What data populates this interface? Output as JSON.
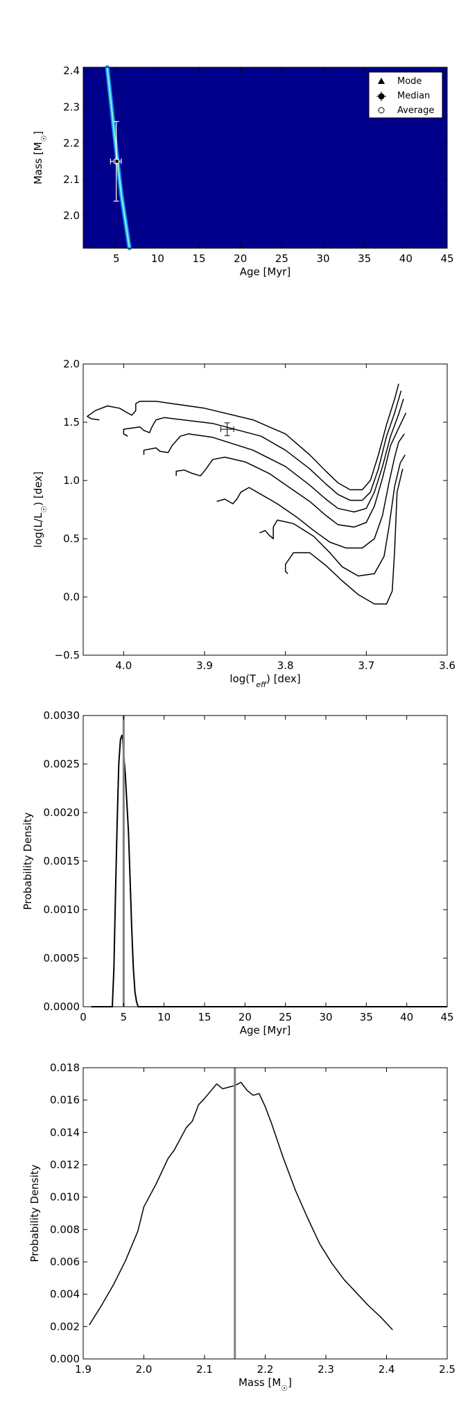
{
  "chart_data": [
    {
      "type": "heatmap",
      "xlabel": "Age [Myr]",
      "ylabel": "Mass [M☉]",
      "xlim": [
        1,
        45
      ],
      "ylim": [
        1.91,
        2.41
      ],
      "xticks": [
        5,
        10,
        15,
        20,
        25,
        30,
        35,
        40,
        45
      ],
      "xtick_labels": [
        "5",
        "10",
        "15",
        "20",
        "25",
        "30",
        "35",
        "40",
        "45"
      ],
      "yticks": [
        2.0,
        2.1,
        2.2,
        2.3,
        2.4
      ],
      "ytick_labels": [
        "2.0",
        "2.1",
        "2.2",
        "2.3",
        "2.4"
      ],
      "background_color": "#00008b",
      "ridge_color": "#7fffd4",
      "ridge": [
        [
          3.9,
          2.41
        ],
        [
          4.9,
          2.2
        ],
        [
          5.6,
          2.06
        ],
        [
          6.6,
          1.91
        ]
      ],
      "legend": {
        "position": "top-right",
        "entries": [
          {
            "label": "Mode",
            "marker": "triangle"
          },
          {
            "label": "Median",
            "marker": "circle-errorbar"
          },
          {
            "label": "Average",
            "marker": "open-circle"
          }
        ]
      },
      "median": {
        "age": 5.0,
        "mass": 2.15,
        "age_err": [
          4.3,
          5.6
        ],
        "mass_err": [
          2.04,
          2.26
        ]
      },
      "grid": false
    },
    {
      "type": "line",
      "xlabel": "log(T_eff) [dex]",
      "ylabel": "log(L/L☉) [dex]",
      "xlim": [
        4.05,
        3.6
      ],
      "ylim": [
        -0.5,
        2.0
      ],
      "xticks": [
        4.0,
        3.9,
        3.8,
        3.7,
        3.6
      ],
      "xtick_labels": [
        "4.0",
        "3.9",
        "3.8",
        "3.7",
        "3.6"
      ],
      "yticks": [
        -0.5,
        0.0,
        0.5,
        1.0,
        1.5,
        2.0
      ],
      "ytick_labels": [
        "−0.5",
        "0.0",
        "0.5",
        "1.0",
        "1.5",
        "2.0"
      ],
      "isochrones": [
        [
          [
            4.03,
            1.52
          ],
          [
            4.04,
            1.53
          ],
          [
            4.045,
            1.55
          ],
          [
            4.035,
            1.6
          ],
          [
            4.02,
            1.64
          ],
          [
            4.005,
            1.62
          ],
          [
            3.995,
            1.58
          ],
          [
            3.99,
            1.56
          ],
          [
            3.985,
            1.6
          ],
          [
            3.985,
            1.66
          ],
          [
            3.98,
            1.68
          ],
          [
            3.96,
            1.68
          ],
          [
            3.9,
            1.62
          ],
          [
            3.84,
            1.52
          ],
          [
            3.8,
            1.4
          ],
          [
            3.77,
            1.22
          ],
          [
            3.75,
            1.08
          ],
          [
            3.735,
            0.98
          ],
          [
            3.72,
            0.92
          ],
          [
            3.705,
            0.92
          ],
          [
            3.695,
            1.0
          ],
          [
            3.685,
            1.22
          ],
          [
            3.675,
            1.48
          ],
          [
            3.665,
            1.7
          ],
          [
            3.66,
            1.83
          ]
        ],
        [
          [
            3.995,
            1.38
          ],
          [
            4.0,
            1.4
          ],
          [
            4.0,
            1.44
          ],
          [
            3.98,
            1.46
          ],
          [
            3.975,
            1.43
          ],
          [
            3.968,
            1.41
          ],
          [
            3.965,
            1.46
          ],
          [
            3.96,
            1.52
          ],
          [
            3.95,
            1.54
          ],
          [
            3.89,
            1.49
          ],
          [
            3.83,
            1.38
          ],
          [
            3.8,
            1.26
          ],
          [
            3.77,
            1.1
          ],
          [
            3.75,
            0.97
          ],
          [
            3.735,
            0.88
          ],
          [
            3.72,
            0.83
          ],
          [
            3.705,
            0.83
          ],
          [
            3.695,
            0.9
          ],
          [
            3.685,
            1.1
          ],
          [
            3.675,
            1.38
          ],
          [
            3.665,
            1.58
          ],
          [
            3.657,
            1.77
          ]
        ],
        [
          [
            3.975,
            1.22
          ],
          [
            3.975,
            1.26
          ],
          [
            3.96,
            1.28
          ],
          [
            3.955,
            1.25
          ],
          [
            3.945,
            1.24
          ],
          [
            3.94,
            1.3
          ],
          [
            3.93,
            1.38
          ],
          [
            3.92,
            1.4
          ],
          [
            3.89,
            1.37
          ],
          [
            3.84,
            1.26
          ],
          [
            3.8,
            1.12
          ],
          [
            3.77,
            0.96
          ],
          [
            3.75,
            0.84
          ],
          [
            3.735,
            0.76
          ],
          [
            3.715,
            0.73
          ],
          [
            3.7,
            0.76
          ],
          [
            3.69,
            0.9
          ],
          [
            3.68,
            1.12
          ],
          [
            3.67,
            1.38
          ],
          [
            3.66,
            1.57
          ],
          [
            3.654,
            1.7
          ]
        ],
        [
          [
            3.935,
            1.04
          ],
          [
            3.935,
            1.08
          ],
          [
            3.925,
            1.09
          ],
          [
            3.915,
            1.06
          ],
          [
            3.905,
            1.04
          ],
          [
            3.898,
            1.1
          ],
          [
            3.89,
            1.18
          ],
          [
            3.875,
            1.2
          ],
          [
            3.85,
            1.16
          ],
          [
            3.82,
            1.06
          ],
          [
            3.795,
            0.94
          ],
          [
            3.77,
            0.82
          ],
          [
            3.75,
            0.7
          ],
          [
            3.735,
            0.62
          ],
          [
            3.715,
            0.6
          ],
          [
            3.7,
            0.64
          ],
          [
            3.69,
            0.78
          ],
          [
            3.68,
            1.02
          ],
          [
            3.67,
            1.3
          ],
          [
            3.66,
            1.45
          ],
          [
            3.651,
            1.58
          ]
        ],
        [
          [
            3.885,
            0.82
          ],
          [
            3.875,
            0.84
          ],
          [
            3.865,
            0.8
          ],
          [
            3.86,
            0.84
          ],
          [
            3.855,
            0.9
          ],
          [
            3.845,
            0.94
          ],
          [
            3.835,
            0.9
          ],
          [
            3.81,
            0.8
          ],
          [
            3.785,
            0.68
          ],
          [
            3.765,
            0.57
          ],
          [
            3.745,
            0.47
          ],
          [
            3.725,
            0.42
          ],
          [
            3.705,
            0.42
          ],
          [
            3.69,
            0.5
          ],
          [
            3.68,
            0.7
          ],
          [
            3.672,
            0.98
          ],
          [
            3.665,
            1.2
          ],
          [
            3.66,
            1.33
          ],
          [
            3.653,
            1.4
          ]
        ],
        [
          [
            3.832,
            0.55
          ],
          [
            3.825,
            0.57
          ],
          [
            3.82,
            0.53
          ],
          [
            3.815,
            0.5
          ],
          [
            3.815,
            0.6
          ],
          [
            3.81,
            0.66
          ],
          [
            3.79,
            0.63
          ],
          [
            3.765,
            0.52
          ],
          [
            3.745,
            0.38
          ],
          [
            3.73,
            0.26
          ],
          [
            3.71,
            0.18
          ],
          [
            3.69,
            0.2
          ],
          [
            3.678,
            0.35
          ],
          [
            3.672,
            0.6
          ],
          [
            3.665,
            0.95
          ],
          [
            3.658,
            1.15
          ],
          [
            3.652,
            1.22
          ]
        ],
        [
          [
            3.797,
            0.2
          ],
          [
            3.8,
            0.22
          ],
          [
            3.8,
            0.28
          ],
          [
            3.79,
            0.38
          ],
          [
            3.77,
            0.38
          ],
          [
            3.75,
            0.27
          ],
          [
            3.73,
            0.14
          ],
          [
            3.71,
            0.02
          ],
          [
            3.69,
            -0.06
          ],
          [
            3.675,
            -0.06
          ],
          [
            3.668,
            0.05
          ],
          [
            3.665,
            0.4
          ],
          [
            3.662,
            0.9
          ],
          [
            3.655,
            1.1
          ]
        ]
      ],
      "data_point": {
        "teff": 3.872,
        "lum": 1.44,
        "teff_err": 0.008,
        "lum_err": 0.055
      },
      "grid": false
    },
    {
      "type": "area",
      "xlabel": "Age [Myr]",
      "ylabel": "Probability Density",
      "xlim": [
        0,
        45
      ],
      "ylim": [
        0,
        0.003
      ],
      "xticks": [
        0,
        5,
        10,
        15,
        20,
        25,
        30,
        35,
        40,
        45
      ],
      "xtick_labels": [
        "0",
        "5",
        "10",
        "15",
        "20",
        "25",
        "30",
        "35",
        "40",
        "45"
      ],
      "yticks": [
        0,
        0.0005,
        0.001,
        0.0015,
        0.002,
        0.0025,
        0.003
      ],
      "ytick_labels": [
        "0.0000",
        "0.0005",
        "0.0010",
        "0.0015",
        "0.0020",
        "0.0025",
        "0.0030"
      ],
      "x": [
        1.0,
        3.6,
        3.8,
        4.0,
        4.2,
        4.4,
        4.6,
        4.8,
        4.9,
        5.0,
        5.2,
        5.4,
        5.6,
        5.8,
        6.0,
        6.2,
        6.4,
        6.6,
        6.8,
        45.0
      ],
      "y": [
        0,
        0,
        0.0004,
        0.0012,
        0.0019,
        0.0025,
        0.00275,
        0.0028,
        0.00275,
        0.0026,
        0.0024,
        0.0021,
        0.0018,
        0.0013,
        0.0008,
        0.0004,
        0.00015,
        5e-05,
        0,
        0
      ],
      "vline": 5.0,
      "grid": false
    },
    {
      "type": "line",
      "xlabel": "Mass [M☉]",
      "ylabel": "Probability Density",
      "xlim": [
        1.9,
        2.5
      ],
      "ylim": [
        0,
        0.018
      ],
      "xticks": [
        1.9,
        2.0,
        2.1,
        2.2,
        2.3,
        2.4,
        2.5
      ],
      "xtick_labels": [
        "1.9",
        "2.0",
        "2.1",
        "2.2",
        "2.3",
        "2.4",
        "2.5"
      ],
      "yticks": [
        0,
        0.002,
        0.004,
        0.006,
        0.008,
        0.01,
        0.012,
        0.014,
        0.016,
        0.018
      ],
      "ytick_labels": [
        "0.000",
        "0.002",
        "0.004",
        "0.006",
        "0.008",
        "0.010",
        "0.012",
        "0.014",
        "0.016",
        "0.018"
      ],
      "x": [
        1.91,
        1.93,
        1.95,
        1.97,
        1.99,
        2.0,
        2.02,
        2.04,
        2.05,
        2.07,
        2.08,
        2.09,
        2.1,
        2.12,
        2.13,
        2.14,
        2.15,
        2.16,
        2.17,
        2.18,
        2.19,
        2.2,
        2.21,
        2.23,
        2.25,
        2.27,
        2.29,
        2.31,
        2.33,
        2.35,
        2.37,
        2.39,
        2.41
      ],
      "y": [
        0.0021,
        0.0033,
        0.0046,
        0.0061,
        0.0079,
        0.0094,
        0.0108,
        0.0124,
        0.0129,
        0.0143,
        0.0147,
        0.0157,
        0.0161,
        0.017,
        0.0167,
        0.0168,
        0.0169,
        0.0171,
        0.0166,
        0.0163,
        0.0164,
        0.0156,
        0.0146,
        0.0124,
        0.0104,
        0.0087,
        0.0071,
        0.0059,
        0.0049,
        0.0041,
        0.0033,
        0.0026,
        0.0018
      ],
      "vline": 2.15,
      "grid": false
    }
  ]
}
